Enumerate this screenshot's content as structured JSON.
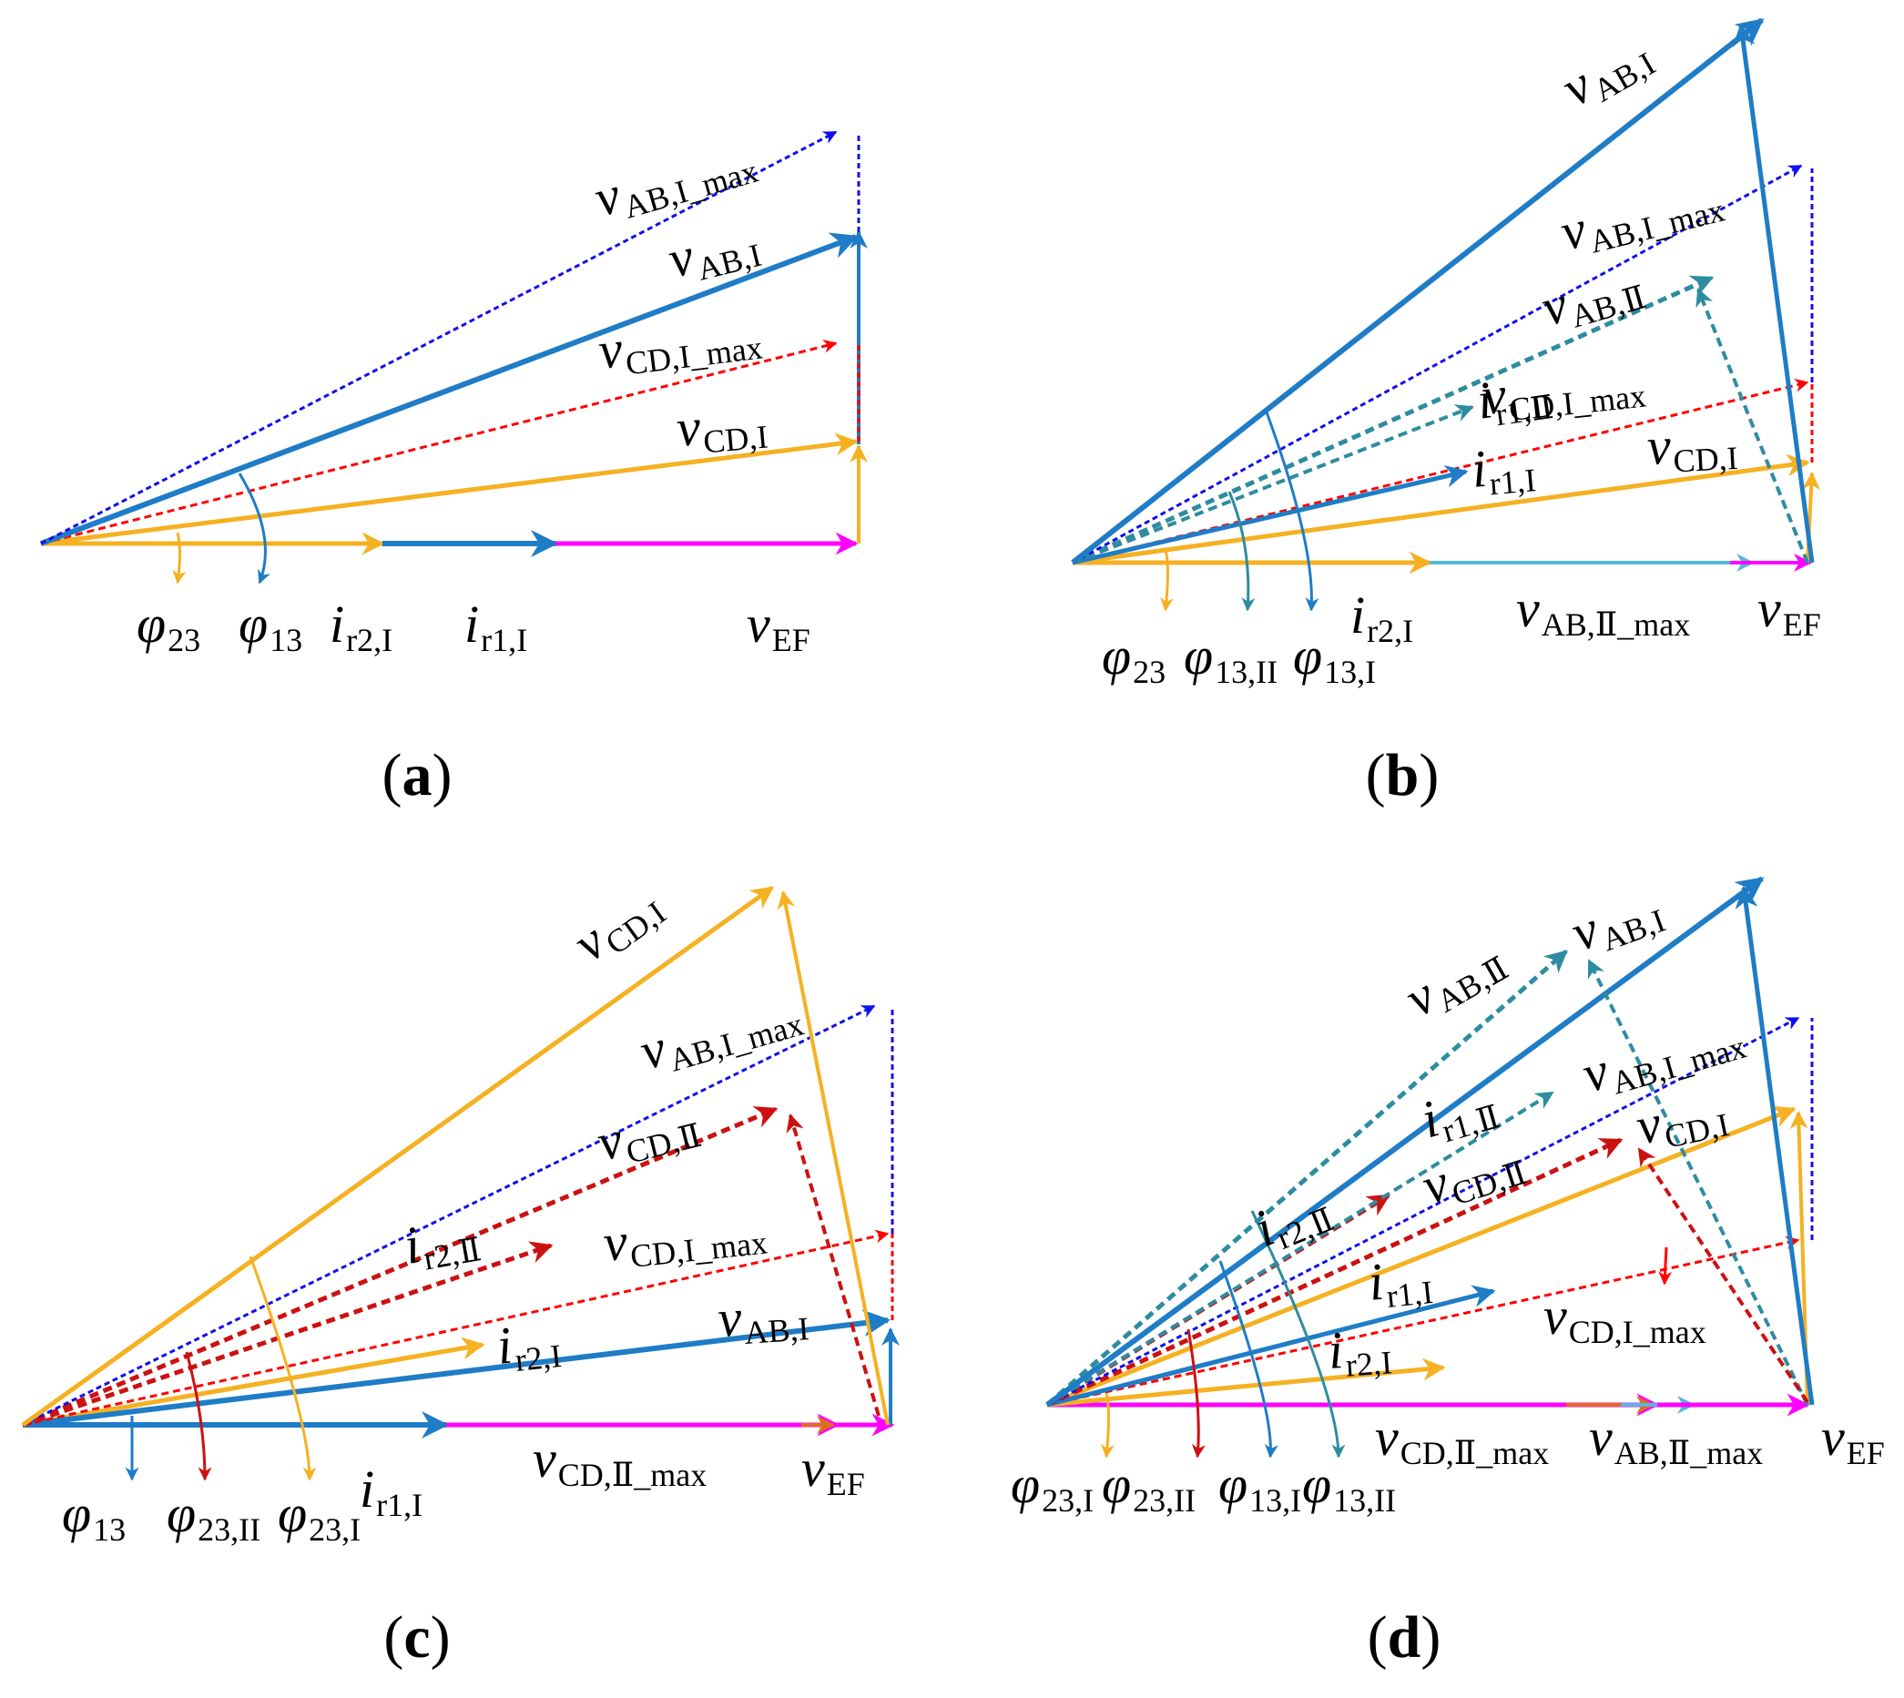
{
  "colors": {
    "blue": "#1f7cc6",
    "orange": "#f5b122",
    "magenta": "#ff00ff",
    "red": "#ff0000",
    "darkred": "#cc1111",
    "navy": "#1010ee",
    "teal": "#2e8ca0",
    "lightblue": "#55b8d6",
    "brown": "#e06d1e"
  },
  "panels": {
    "a": {
      "caption": {
        "open": "(",
        "letter": "a",
        "close": ")"
      },
      "labels": [
        {
          "id": "vab_max",
          "main": "v",
          "sub": "AB,I_max"
        },
        {
          "id": "vab",
          "main": "v",
          "sub": "AB,I"
        },
        {
          "id": "vcd_max",
          "main": "v",
          "sub": "CD,I_max"
        },
        {
          "id": "vcd",
          "main": "v",
          "sub": "CD,I"
        },
        {
          "id": "phi23",
          "main": "φ",
          "sub": "23"
        },
        {
          "id": "phi13",
          "main": "φ",
          "sub": "13"
        },
        {
          "id": "ir2",
          "main": "i",
          "sub": "r2,I"
        },
        {
          "id": "ir1",
          "main": "i",
          "sub": "r1,I"
        },
        {
          "id": "vef",
          "main": "v",
          "sub": "EF"
        }
      ]
    },
    "b": {
      "caption": {
        "open": "(",
        "letter": "b",
        "close": ")"
      },
      "labels": [
        {
          "id": "vab",
          "main": "v",
          "sub": "AB,I"
        },
        {
          "id": "vab_max",
          "main": "v",
          "sub": "AB,I_max"
        },
        {
          "id": "vab2",
          "main": "v",
          "sub": "AB,Ⅱ"
        },
        {
          "id": "ir1_2",
          "main": "i",
          "sub": "r1,Ⅱ"
        },
        {
          "id": "vcd_max",
          "main": "v",
          "sub": "CD,I_max"
        },
        {
          "id": "ir1",
          "main": "i",
          "sub": "r1,I"
        },
        {
          "id": "vcd",
          "main": "v",
          "sub": "CD,I"
        },
        {
          "id": "ir2",
          "main": "i",
          "sub": "r2,I"
        },
        {
          "id": "vab2_max",
          "main": "v",
          "sub": "AB,Ⅱ_max"
        },
        {
          "id": "vef",
          "main": "v",
          "sub": "EF"
        },
        {
          "id": "phi23",
          "main": "φ",
          "sub": "23"
        },
        {
          "id": "phi13_2",
          "main": "φ",
          "sub": "13,II"
        },
        {
          "id": "phi13_1",
          "main": "φ",
          "sub": "13,I"
        }
      ]
    },
    "c": {
      "caption": {
        "open": "(",
        "letter": "c",
        "close": ")"
      },
      "labels": [
        {
          "id": "vcd",
          "main": "v",
          "sub": "CD,I"
        },
        {
          "id": "vab_max",
          "main": "v",
          "sub": "AB,I_max"
        },
        {
          "id": "vcd2",
          "main": "v",
          "sub": "CD,Ⅱ"
        },
        {
          "id": "ir2_2",
          "main": "i",
          "sub": "r2,Ⅱ"
        },
        {
          "id": "vcd_max",
          "main": "v",
          "sub": "CD,I_max"
        },
        {
          "id": "vab",
          "main": "v",
          "sub": "AB,I"
        },
        {
          "id": "ir2",
          "main": "i",
          "sub": "r2,I"
        },
        {
          "id": "vcd2_max",
          "main": "v",
          "sub": "CD,Ⅱ_max"
        },
        {
          "id": "vef",
          "main": "v",
          "sub": "EF"
        },
        {
          "id": "phi13",
          "main": "φ",
          "sub": "13"
        },
        {
          "id": "phi23_2",
          "main": "φ",
          "sub": "23,II"
        },
        {
          "id": "phi23_1",
          "main": "φ",
          "sub": "23,I"
        },
        {
          "id": "ir1",
          "main": "i",
          "sub": "r1,I"
        }
      ]
    },
    "d": {
      "caption": {
        "open": "(",
        "letter": "d",
        "close": ")"
      },
      "labels": [
        {
          "id": "vab2",
          "main": "v",
          "sub": "AB,Ⅱ"
        },
        {
          "id": "vab",
          "main": "v",
          "sub": "AB,I"
        },
        {
          "id": "ir1_2",
          "main": "i",
          "sub": "r1,Ⅱ"
        },
        {
          "id": "vab_max",
          "main": "v",
          "sub": "AB,I_max"
        },
        {
          "id": "ir2_2",
          "main": "i",
          "sub": "r2,Ⅱ"
        },
        {
          "id": "vcd2",
          "main": "v",
          "sub": "CD,Ⅱ"
        },
        {
          "id": "vcd",
          "main": "v",
          "sub": "CD,I"
        },
        {
          "id": "ir1",
          "main": "i",
          "sub": "r1,I"
        },
        {
          "id": "vcd_max",
          "main": "v",
          "sub": "CD,I_max"
        },
        {
          "id": "ir2",
          "main": "i",
          "sub": "r2,I"
        },
        {
          "id": "vcd2_max",
          "main": "v",
          "sub": "CD,Ⅱ_max"
        },
        {
          "id": "vab2_max",
          "main": "v",
          "sub": "AB,Ⅱ_max"
        },
        {
          "id": "vef",
          "main": "v",
          "sub": "EF"
        },
        {
          "id": "phi23_1",
          "main": "φ",
          "sub": "23,I"
        },
        {
          "id": "phi23_2",
          "main": "φ",
          "sub": "23,II"
        },
        {
          "id": "phi13_1",
          "main": "φ",
          "sub": "13,I"
        },
        {
          "id": "phi13_2",
          "main": "φ",
          "sub": "13,II"
        }
      ]
    }
  }
}
